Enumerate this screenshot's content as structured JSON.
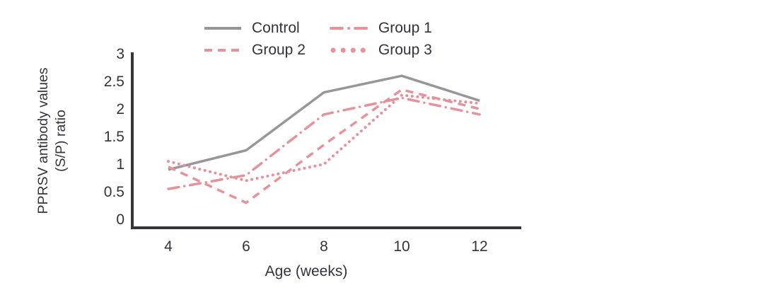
{
  "chart_data": {
    "type": "line",
    "title": "",
    "xlabel": "Age (weeks)",
    "ylabel_line1": "PPRSV antibody values",
    "ylabel_line2": "(S/P) ratio",
    "x": [
      4,
      6,
      8,
      10,
      12
    ],
    "x_ticks": [
      "4",
      "6",
      "8",
      "10",
      "12"
    ],
    "y_tick_values": [
      0,
      0.5,
      1,
      1.5,
      2,
      2.5,
      3
    ],
    "y_ticks": [
      "0",
      "0.5",
      "1",
      "1.5",
      "2",
      "2.5",
      "3"
    ],
    "xlim": [
      3,
      13
    ],
    "ylim": [
      0,
      3
    ],
    "grid": false,
    "legend_position": "top",
    "axis_color": "#35353d",
    "text_color": "#32333c",
    "series": [
      {
        "name": "Control",
        "style": "solid",
        "color": "#97979b",
        "values": [
          0.9,
          1.25,
          2.3,
          2.6,
          2.15
        ]
      },
      {
        "name": "Group 1",
        "style": "dash-dot",
        "color": "#e5929b",
        "values": [
          0.55,
          0.8,
          1.9,
          2.2,
          1.9
        ]
      },
      {
        "name": "Group 2",
        "style": "dashed",
        "color": "#e5929b",
        "values": [
          0.95,
          0.3,
          1.35,
          2.35,
          2.0
        ]
      },
      {
        "name": "Group 3",
        "style": "dotted",
        "color": "#e5929b",
        "values": [
          1.05,
          0.7,
          1.0,
          2.25,
          2.1
        ]
      }
    ]
  }
}
